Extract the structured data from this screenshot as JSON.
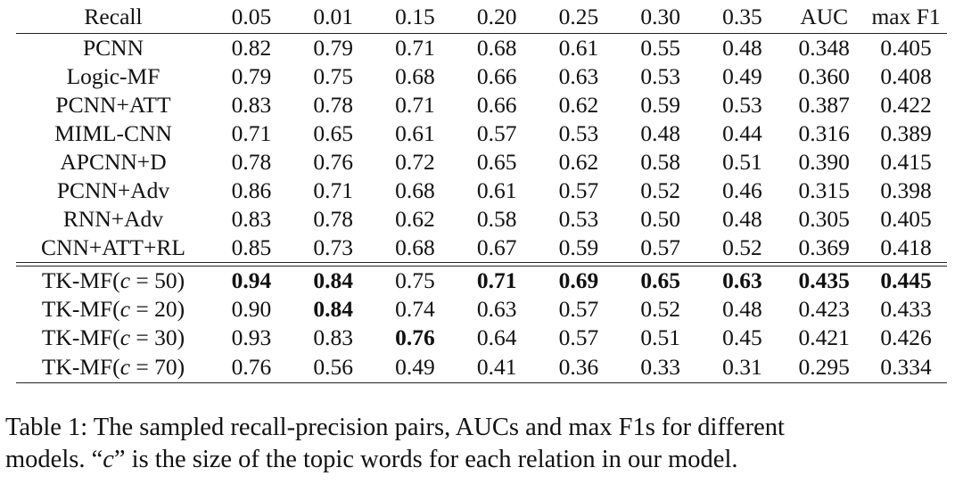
{
  "table": {
    "header": [
      "Recall",
      "0.05",
      "0.01",
      "0.15",
      "0.20",
      "0.25",
      "0.30",
      "0.35",
      "AUC",
      "max F1"
    ],
    "baseline_rows": [
      {
        "model": "PCNN",
        "values": [
          "0.82",
          "0.79",
          "0.71",
          "0.68",
          "0.61",
          "0.55",
          "0.48",
          "0.348",
          "0.405"
        ]
      },
      {
        "model": "Logic-MF",
        "values": [
          "0.79",
          "0.75",
          "0.68",
          "0.66",
          "0.63",
          "0.53",
          "0.49",
          "0.360",
          "0.408"
        ]
      },
      {
        "model": "PCNN+ATT",
        "values": [
          "0.83",
          "0.78",
          "0.71",
          "0.66",
          "0.62",
          "0.59",
          "0.53",
          "0.387",
          "0.422"
        ]
      },
      {
        "model": "MIML-CNN",
        "values": [
          "0.71",
          "0.65",
          "0.61",
          "0.57",
          "0.53",
          "0.48",
          "0.44",
          "0.316",
          "0.389"
        ]
      },
      {
        "model": "APCNN+D",
        "values": [
          "0.78",
          "0.76",
          "0.72",
          "0.65",
          "0.62",
          "0.58",
          "0.51",
          "0.390",
          "0.415"
        ]
      },
      {
        "model": "PCNN+Adv",
        "values": [
          "0.86",
          "0.71",
          "0.68",
          "0.61",
          "0.57",
          "0.52",
          "0.46",
          "0.315",
          "0.398"
        ]
      },
      {
        "model": "RNN+Adv",
        "values": [
          "0.83",
          "0.78",
          "0.62",
          "0.58",
          "0.53",
          "0.50",
          "0.48",
          "0.305",
          "0.405"
        ]
      },
      {
        "model": "CNN+ATT+RL",
        "values": [
          "0.85",
          "0.73",
          "0.68",
          "0.67",
          "0.59",
          "0.57",
          "0.52",
          "0.369",
          "0.418"
        ]
      }
    ],
    "proposed_rows": [
      {
        "model_prefix": "TK-MF(",
        "model_var": "c",
        "model_suffix": " = 50)",
        "values": [
          "0.94",
          "0.84",
          "0.75",
          "0.71",
          "0.69",
          "0.65",
          "0.63",
          "0.435",
          "0.445"
        ],
        "bold": [
          true,
          true,
          false,
          true,
          true,
          true,
          true,
          true,
          true
        ]
      },
      {
        "model_prefix": "TK-MF(",
        "model_var": "c",
        "model_suffix": " = 20)",
        "values": [
          "0.90",
          "0.84",
          "0.74",
          "0.63",
          "0.57",
          "0.52",
          "0.48",
          "0.423",
          "0.433"
        ],
        "bold": [
          false,
          true,
          false,
          false,
          false,
          false,
          false,
          false,
          false
        ]
      },
      {
        "model_prefix": "TK-MF(",
        "model_var": "c",
        "model_suffix": " = 30)",
        "values": [
          "0.93",
          "0.83",
          "0.76",
          "0.64",
          "0.57",
          "0.51",
          "0.45",
          "0.421",
          "0.426"
        ],
        "bold": [
          false,
          false,
          true,
          false,
          false,
          false,
          false,
          false,
          false
        ]
      },
      {
        "model_prefix": "TK-MF(",
        "model_var": "c",
        "model_suffix": " = 70)",
        "values": [
          "0.76",
          "0.56",
          "0.49",
          "0.41",
          "0.36",
          "0.33",
          "0.31",
          "0.295",
          "0.334"
        ],
        "bold": [
          false,
          false,
          false,
          false,
          false,
          false,
          false,
          false,
          false
        ]
      }
    ]
  },
  "caption": {
    "line1": "Table 1: The sampled recall-precision pairs, AUCs and max F1s for different",
    "line2_part1": "models. “",
    "line2_var": "c",
    "line2_part2": "” is the size of the topic words for each relation in our model."
  }
}
